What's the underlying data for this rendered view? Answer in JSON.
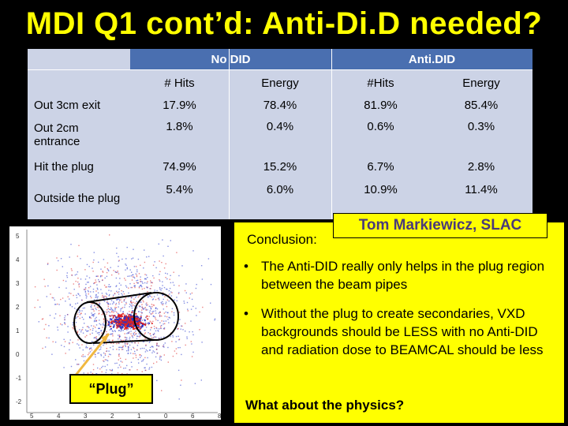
{
  "slide": {
    "title": "MDI Q1 cont’d: Anti-Di.D needed?",
    "author": "Tom Markiewicz, SLAC"
  },
  "table": {
    "group_headers": [
      "No DID",
      "Anti.DID"
    ],
    "sub_headers": [
      "# Hits",
      "Energy",
      "#Hits",
      "Energy"
    ],
    "rows": [
      {
        "label": "Out 3cm exit",
        "values": [
          "17.9%",
          "78.4%",
          "81.9%",
          "85.4%"
        ]
      },
      {
        "label": "Out 2cm entrance",
        "values": [
          "1.8%",
          "0.4%",
          "0.6%",
          "0.3%"
        ]
      },
      {
        "label": "Hit the plug",
        "values": [
          "74.9%",
          "15.2%",
          "6.7%",
          "2.8%"
        ]
      },
      {
        "label": "Outside the plug",
        "values": [
          "5.4%",
          "6.0%",
          "10.9%",
          "11.4%"
        ]
      }
    ]
  },
  "plot": {
    "y_ticks": [
      "5",
      "4",
      "3",
      "2",
      "1",
      "0",
      "-1",
      "-2"
    ],
    "x_ticks": [
      "5",
      "4",
      "3",
      "2",
      "1",
      "0",
      "6",
      "8"
    ],
    "colors": {
      "blue": "#2233cc",
      "red": "#dd2222"
    }
  },
  "plug_label": "“Plug”",
  "conclusion": {
    "label": "Conclusion:",
    "bullets": [
      "The Anti-DID really only helps in the plug region between the beam pipes",
      "Without the plug to create secondaries, VXD backgrounds should be LESS with no Anti-DID and radiation dose to BEAMCAL should be less"
    ],
    "bullet_symbol": "•",
    "arrow_symbol": "",
    "question": "What about the physics?"
  }
}
